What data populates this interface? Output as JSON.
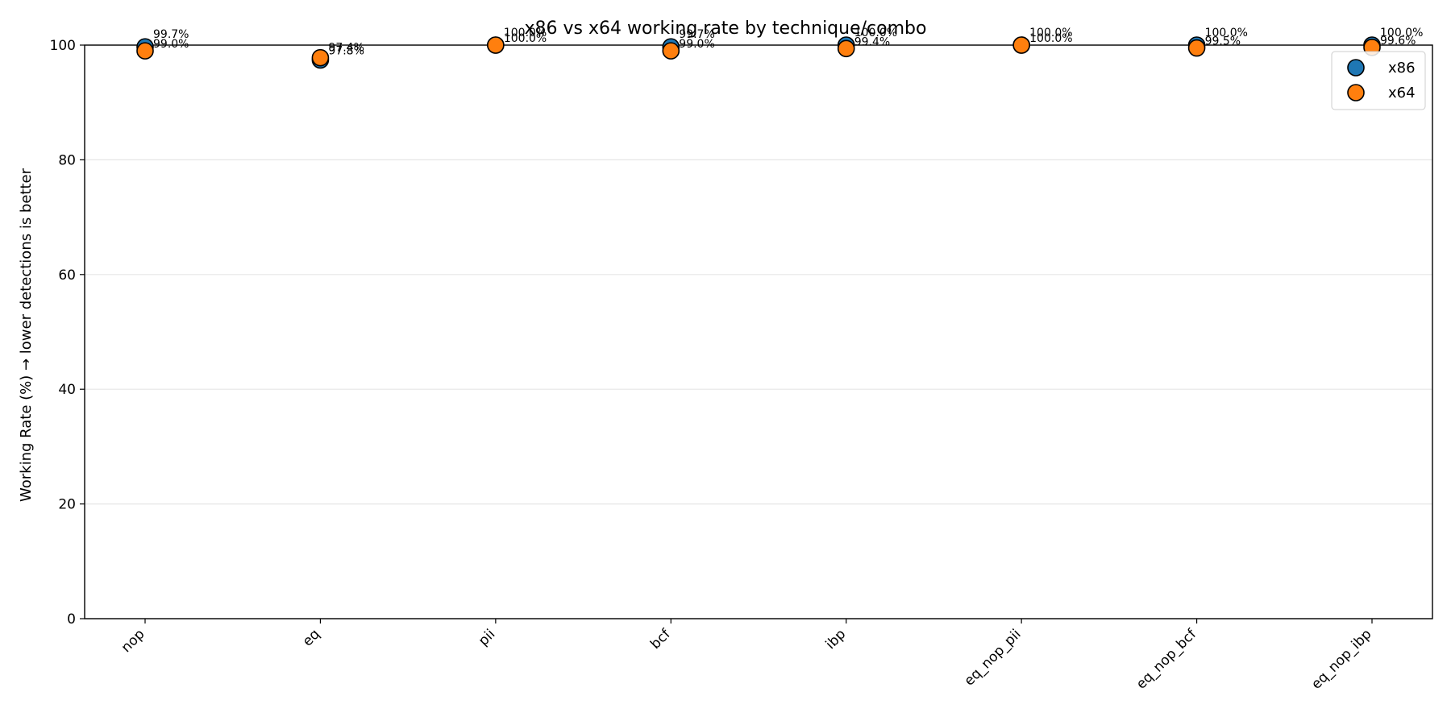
{
  "chart_data": {
    "type": "scatter",
    "title": "x86 vs x64 working rate by technique/combo",
    "xlabel": "",
    "ylabel": "Working Rate (%) → lower detections is better",
    "ylim": [
      0,
      100
    ],
    "yticks": [
      0,
      20,
      40,
      60,
      80,
      100
    ],
    "grid": "horizontal",
    "legend_position": "top-right",
    "categories": [
      "nop",
      "eq",
      "pii",
      "bcf",
      "ibp",
      "eq_nop_pii",
      "eq_nop_bcf",
      "eq_nop_ibp"
    ],
    "series": [
      {
        "name": "x86",
        "color": "#1f77b4",
        "values": [
          99.7,
          97.4,
          100.0,
          99.7,
          100.0,
          100.0,
          100.0,
          100.0
        ],
        "labels": [
          "99.7%",
          "97.4%",
          "100.0%",
          "99.7%",
          "100.0%",
          "100.0%",
          "100.0%",
          "100.0%"
        ]
      },
      {
        "name": "x64",
        "color": "#ff7f0e",
        "values": [
          99.0,
          97.8,
          100.0,
          99.0,
          99.4,
          100.0,
          99.5,
          99.6
        ],
        "labels": [
          "99.0%",
          "97.8%",
          "100.0%",
          "99.0%",
          "99.4%",
          "100.0%",
          "99.5%",
          "99.6%"
        ]
      }
    ]
  }
}
